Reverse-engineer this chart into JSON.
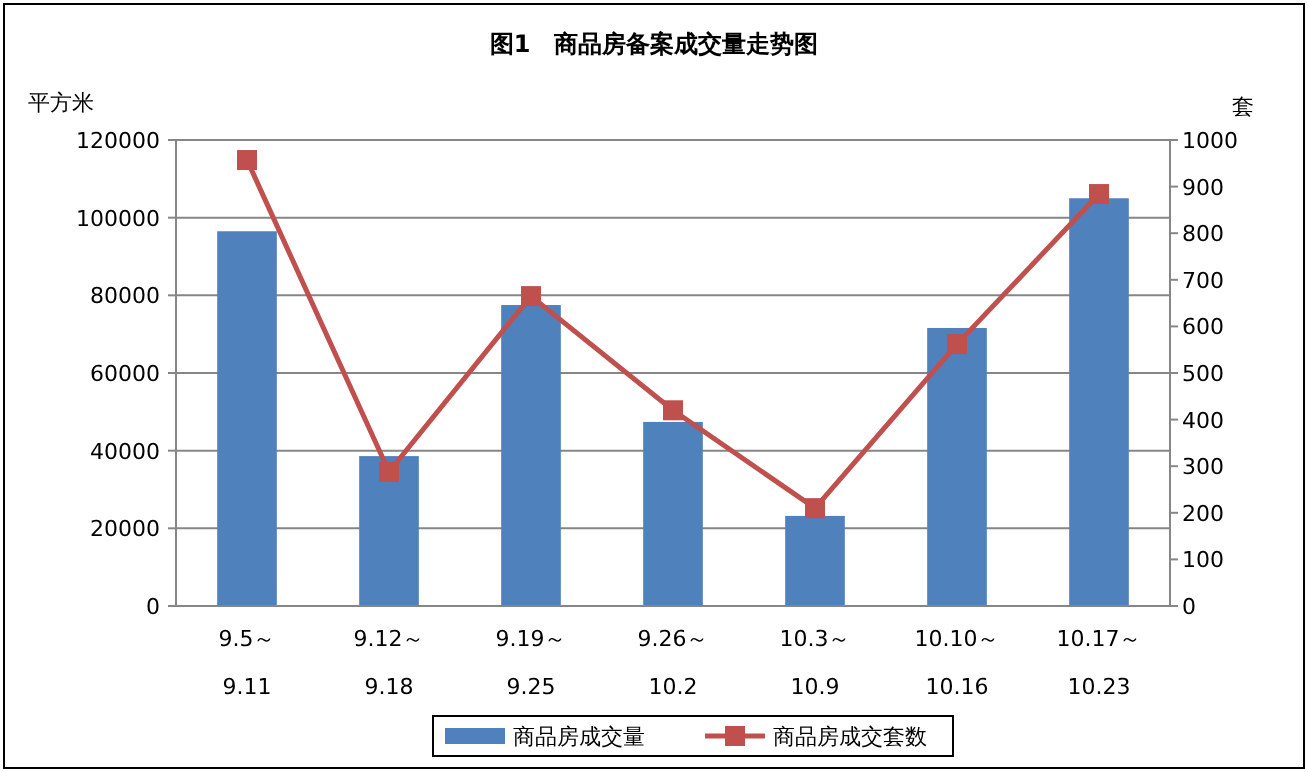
{
  "chart_data": {
    "type": "bar",
    "title": "图1　商品房备案成交量走势图",
    "ylabel": "平方米",
    "y2label": "套",
    "categories": [
      "9.5～9.11",
      "9.12～9.18",
      "9.19～9.25",
      "9.26～10.2",
      "10.3～10.9",
      "10.10～10.16",
      "10.17～10.23"
    ],
    "series": [
      {
        "name": "商品房成交量",
        "color": "#4f81bd",
        "values": [
          96500,
          38600,
          77500,
          47400,
          23200,
          71600,
          105000
        ]
      },
      {
        "name": "商品房成交套数",
        "type": "line",
        "axis": "y2",
        "color": "#c0504d",
        "marker": "square",
        "values": [
          957,
          288,
          665,
          420,
          210,
          562,
          884
        ]
      }
    ],
    "ylim": [
      0,
      120000
    ],
    "yticks": [
      0,
      20000,
      40000,
      60000,
      80000,
      100000,
      120000
    ],
    "y2lim": [
      0,
      1000
    ],
    "y2ticks": [
      0,
      100,
      200,
      300,
      400,
      500,
      600,
      700,
      800,
      900,
      1000
    ],
    "grid": "y",
    "legend": "bottom"
  }
}
